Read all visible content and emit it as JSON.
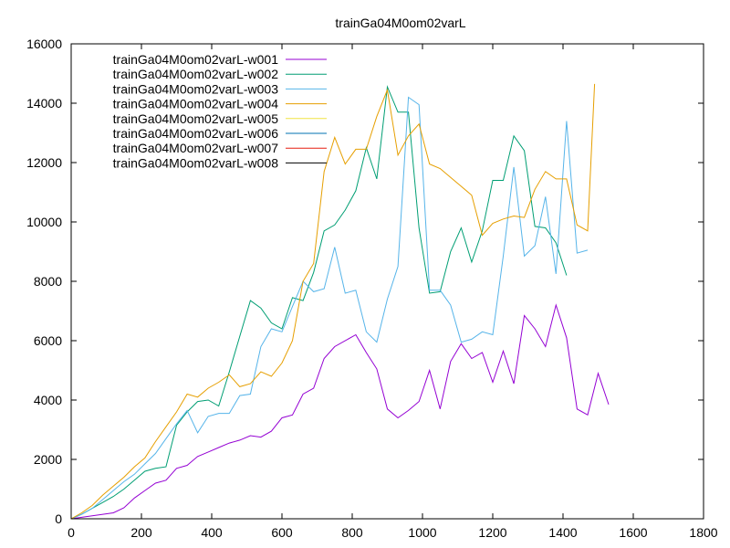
{
  "chart_data": {
    "type": "line",
    "title": "trainGa04M0om02varL",
    "xlabel": "",
    "ylabel": "",
    "xlim": [
      0,
      1800
    ],
    "ylim": [
      0,
      16000
    ],
    "x_ticks": [
      0,
      200,
      400,
      600,
      800,
      1000,
      1200,
      1400,
      1600,
      1800
    ],
    "y_ticks": [
      0,
      2000,
      4000,
      6000,
      8000,
      10000,
      12000,
      14000,
      16000
    ],
    "grid": false,
    "legend_position": "top-left",
    "series": [
      {
        "name": "trainGa04M0om02varL-w001",
        "color": "#9400d3",
        "points": [
          [
            0,
            0
          ],
          [
            30,
            50
          ],
          [
            60,
            100
          ],
          [
            90,
            150
          ],
          [
            120,
            200
          ],
          [
            150,
            370
          ],
          [
            180,
            700
          ],
          [
            210,
            950
          ],
          [
            240,
            1200
          ],
          [
            270,
            1300
          ],
          [
            300,
            1700
          ],
          [
            330,
            1800
          ],
          [
            360,
            2100
          ],
          [
            390,
            2250
          ],
          [
            420,
            2400
          ],
          [
            450,
            2550
          ],
          [
            480,
            2650
          ],
          [
            510,
            2800
          ],
          [
            540,
            2750
          ],
          [
            570,
            2950
          ],
          [
            600,
            3400
          ],
          [
            630,
            3500
          ],
          [
            660,
            4200
          ],
          [
            690,
            4400
          ],
          [
            720,
            5400
          ],
          [
            750,
            5800
          ],
          [
            810,
            6200
          ],
          [
            840,
            5600
          ],
          [
            870,
            5050
          ],
          [
            900,
            3700
          ],
          [
            930,
            3400
          ],
          [
            960,
            3650
          ],
          [
            990,
            3950
          ],
          [
            1020,
            5000
          ],
          [
            1050,
            3700
          ],
          [
            1080,
            5300
          ],
          [
            1110,
            5900
          ],
          [
            1140,
            5400
          ],
          [
            1170,
            5600
          ],
          [
            1200,
            4600
          ],
          [
            1230,
            5650
          ],
          [
            1260,
            4550
          ],
          [
            1290,
            6850
          ],
          [
            1320,
            6400
          ],
          [
            1350,
            5800
          ],
          [
            1380,
            7200
          ],
          [
            1410,
            6100
          ],
          [
            1440,
            3700
          ],
          [
            1470,
            3500
          ],
          [
            1500,
            4900
          ],
          [
            1530,
            3850
          ]
        ]
      },
      {
        "name": "trainGa04M0om02varL-w002",
        "color": "#009e73",
        "points": [
          [
            0,
            0
          ],
          [
            30,
            150
          ],
          [
            60,
            350
          ],
          [
            90,
            550
          ],
          [
            120,
            750
          ],
          [
            150,
            1000
          ],
          [
            180,
            1300
          ],
          [
            210,
            1600
          ],
          [
            240,
            1700
          ],
          [
            270,
            1750
          ],
          [
            300,
            3150
          ],
          [
            330,
            3600
          ],
          [
            360,
            3950
          ],
          [
            390,
            4000
          ],
          [
            420,
            3800
          ],
          [
            450,
            4950
          ],
          [
            480,
            6150
          ],
          [
            510,
            7350
          ],
          [
            540,
            7100
          ],
          [
            570,
            6600
          ],
          [
            600,
            6400
          ],
          [
            630,
            7450
          ],
          [
            660,
            7350
          ],
          [
            690,
            8300
          ],
          [
            720,
            9700
          ],
          [
            750,
            9900
          ],
          [
            780,
            10400
          ],
          [
            810,
            11050
          ],
          [
            840,
            12500
          ],
          [
            870,
            11450
          ],
          [
            900,
            14550
          ],
          [
            930,
            13700
          ],
          [
            960,
            13700
          ],
          [
            990,
            9800
          ],
          [
            1020,
            7600
          ],
          [
            1050,
            7650
          ],
          [
            1080,
            9000
          ],
          [
            1110,
            9800
          ],
          [
            1140,
            8650
          ],
          [
            1170,
            9700
          ],
          [
            1200,
            11400
          ],
          [
            1230,
            11400
          ],
          [
            1260,
            12900
          ],
          [
            1290,
            12400
          ],
          [
            1320,
            9850
          ],
          [
            1350,
            9800
          ],
          [
            1380,
            9300
          ],
          [
            1410,
            8200
          ]
        ]
      },
      {
        "name": "trainGa04M0om02varL-w003",
        "color": "#56b4e9",
        "points": [
          [
            0,
            0
          ],
          [
            30,
            150
          ],
          [
            60,
            350
          ],
          [
            90,
            650
          ],
          [
            120,
            950
          ],
          [
            150,
            1250
          ],
          [
            180,
            1500
          ],
          [
            210,
            1850
          ],
          [
            240,
            2200
          ],
          [
            270,
            2700
          ],
          [
            300,
            3200
          ],
          [
            330,
            3650
          ],
          [
            360,
            2900
          ],
          [
            390,
            3450
          ],
          [
            420,
            3550
          ],
          [
            450,
            3550
          ],
          [
            480,
            4150
          ],
          [
            510,
            4200
          ],
          [
            540,
            5800
          ],
          [
            570,
            6400
          ],
          [
            600,
            6300
          ],
          [
            630,
            7150
          ],
          [
            660,
            8000
          ],
          [
            690,
            7650
          ],
          [
            720,
            7750
          ],
          [
            750,
            9150
          ],
          [
            780,
            7600
          ],
          [
            810,
            7700
          ],
          [
            840,
            6300
          ],
          [
            870,
            5950
          ],
          [
            900,
            7400
          ],
          [
            930,
            8500
          ],
          [
            960,
            14200
          ],
          [
            990,
            13950
          ],
          [
            1020,
            7700
          ],
          [
            1050,
            7700
          ],
          [
            1080,
            7200
          ],
          [
            1110,
            5950
          ],
          [
            1140,
            6050
          ],
          [
            1170,
            6300
          ],
          [
            1200,
            6200
          ],
          [
            1230,
            8850
          ],
          [
            1260,
            11850
          ],
          [
            1290,
            8850
          ],
          [
            1320,
            9200
          ],
          [
            1350,
            10850
          ],
          [
            1380,
            8250
          ],
          [
            1410,
            13400
          ],
          [
            1440,
            8950
          ],
          [
            1470,
            9050
          ]
        ]
      },
      {
        "name": "trainGa04M0om02varL-w004",
        "color": "#e69f00",
        "points": [
          [
            0,
            0
          ],
          [
            30,
            200
          ],
          [
            60,
            450
          ],
          [
            90,
            800
          ],
          [
            120,
            1100
          ],
          [
            150,
            1400
          ],
          [
            180,
            1750
          ],
          [
            210,
            2050
          ],
          [
            240,
            2600
          ],
          [
            270,
            3100
          ],
          [
            300,
            3600
          ],
          [
            330,
            4200
          ],
          [
            360,
            4100
          ],
          [
            390,
            4400
          ],
          [
            420,
            4600
          ],
          [
            450,
            4850
          ],
          [
            480,
            4450
          ],
          [
            510,
            4550
          ],
          [
            540,
            4950
          ],
          [
            570,
            4800
          ],
          [
            600,
            5250
          ],
          [
            630,
            6000
          ],
          [
            660,
            8000
          ],
          [
            690,
            8600
          ],
          [
            720,
            11700
          ],
          [
            750,
            12850
          ],
          [
            780,
            11950
          ],
          [
            810,
            12450
          ],
          [
            840,
            12450
          ],
          [
            870,
            13550
          ],
          [
            900,
            14450
          ],
          [
            930,
            12250
          ],
          [
            960,
            12900
          ],
          [
            990,
            13300
          ],
          [
            1020,
            11950
          ],
          [
            1050,
            11800
          ],
          [
            1080,
            11500
          ],
          [
            1110,
            11200
          ],
          [
            1140,
            10900
          ],
          [
            1170,
            9550
          ],
          [
            1200,
            9950
          ],
          [
            1230,
            10100
          ],
          [
            1260,
            10200
          ],
          [
            1290,
            10150
          ],
          [
            1320,
            11100
          ],
          [
            1350,
            11700
          ],
          [
            1380,
            11450
          ],
          [
            1410,
            11450
          ],
          [
            1440,
            9900
          ],
          [
            1470,
            9700
          ],
          [
            1490,
            14650
          ]
        ]
      },
      {
        "name": "trainGa04M0om02varL-w005",
        "color": "#f0e442",
        "points": []
      },
      {
        "name": "trainGa04M0om02varL-w006",
        "color": "#0072b2",
        "points": []
      },
      {
        "name": "trainGa04M0om02varL-w007",
        "color": "#e51e10",
        "points": []
      },
      {
        "name": "trainGa04M0om02varL-w008",
        "color": "#000000",
        "points": []
      }
    ]
  }
}
